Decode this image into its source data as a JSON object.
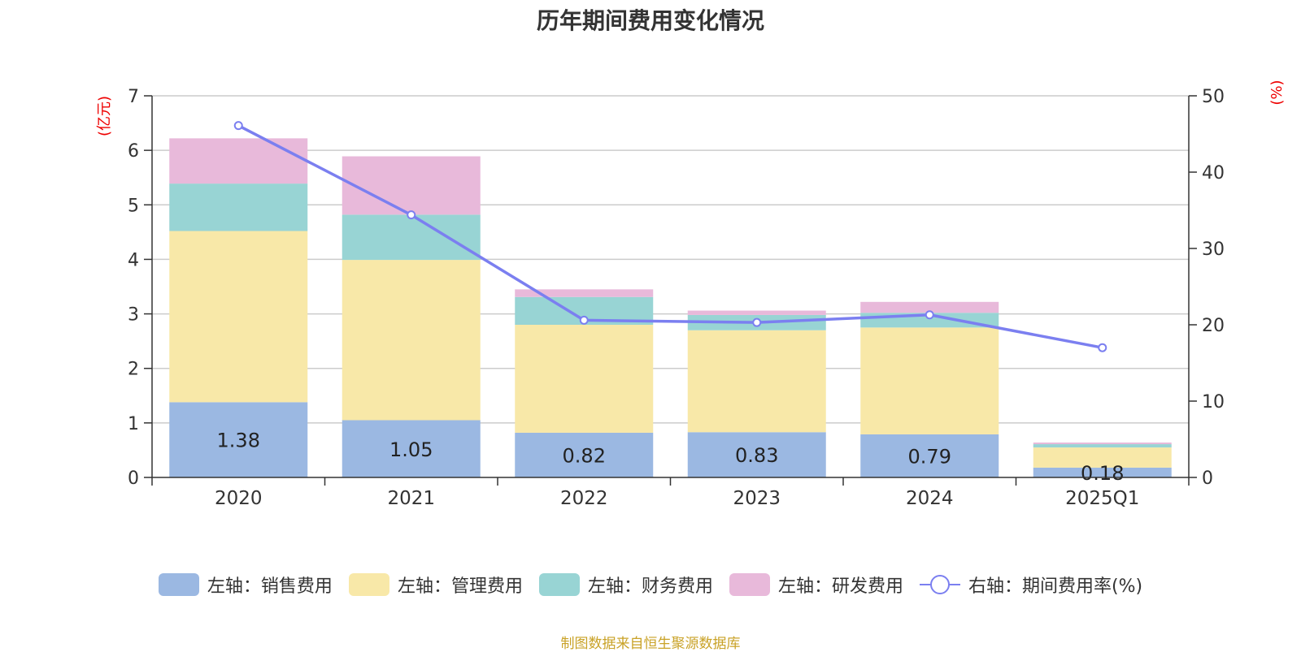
{
  "chart_data": {
    "type": "bar",
    "stacked": true,
    "title": "历年期间费用变化情况",
    "categories": [
      "2020",
      "2021",
      "2022",
      "2023",
      "2024",
      "2025Q1"
    ],
    "left_axis": {
      "unit_label": "(亿元)",
      "ylim": [
        0,
        7
      ],
      "ticks": [
        "0",
        "1",
        "2",
        "3",
        "4",
        "5",
        "6",
        "7"
      ]
    },
    "right_axis": {
      "unit_label": "(%)",
      "ylim": [
        0,
        50
      ],
      "ticks": [
        "0",
        "10",
        "20",
        "30",
        "40",
        "50"
      ]
    },
    "series": [
      {
        "name": "左轴：销售费用",
        "axis": "left",
        "color": "#9bb8e2",
        "values": [
          1.38,
          1.05,
          0.82,
          0.83,
          0.79,
          0.18
        ],
        "labels": [
          "1.38",
          "1.05",
          "0.82",
          "0.83",
          "0.79",
          "0.18"
        ]
      },
      {
        "name": "左轴：管理费用",
        "axis": "left",
        "color": "#f8e8a8",
        "values": [
          3.14,
          2.94,
          1.98,
          1.87,
          1.96,
          0.37
        ]
      },
      {
        "name": "左轴：财务费用",
        "axis": "left",
        "color": "#98d4d4",
        "values": [
          0.87,
          0.83,
          0.51,
          0.28,
          0.27,
          0.06
        ]
      },
      {
        "name": "左轴：研发费用",
        "axis": "left",
        "color": "#e8b9da",
        "values": [
          0.83,
          1.07,
          0.14,
          0.08,
          0.2,
          0.03
        ]
      },
      {
        "name": "右轴：期间费用率(%)",
        "axis": "right",
        "type": "line",
        "color": "#7b7ff0",
        "values": [
          46.1,
          34.4,
          20.6,
          20.3,
          21.3,
          17.0
        ]
      }
    ],
    "grid": true,
    "legend_position": "bottom",
    "source_note": "制图数据来自恒生聚源数据库"
  }
}
